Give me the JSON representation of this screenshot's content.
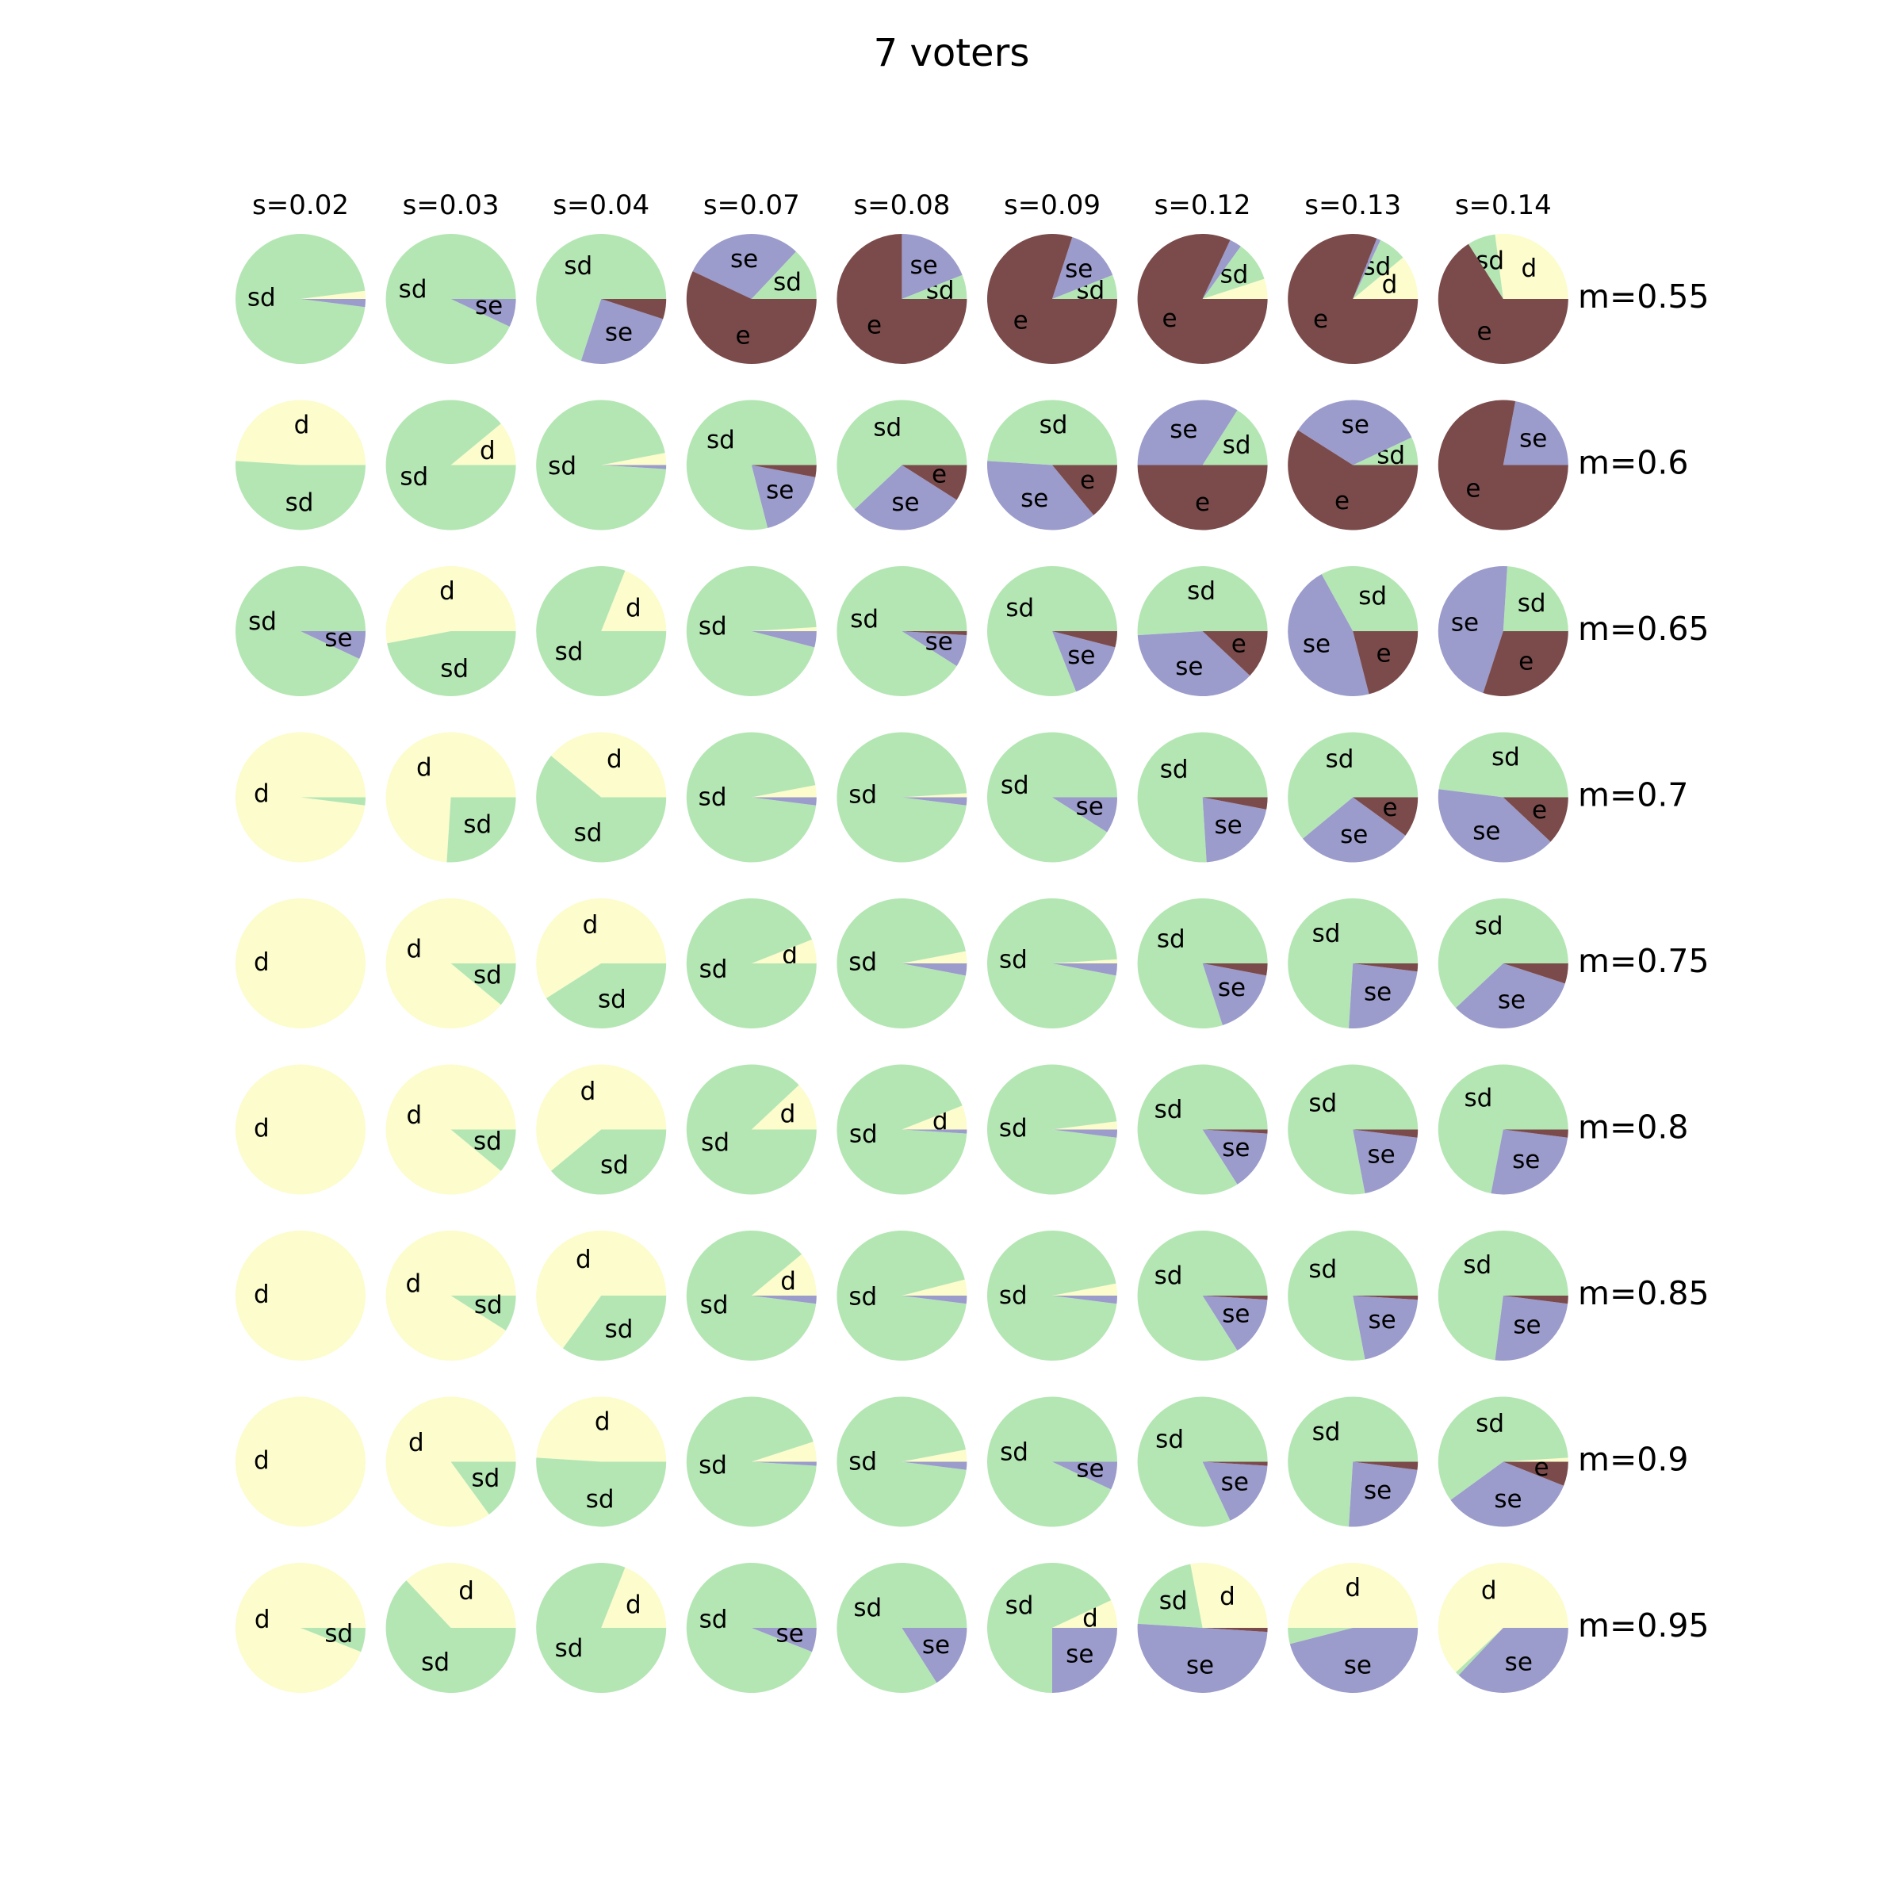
{
  "chart_data": {
    "type": "pie",
    "title": "7 voters",
    "layout": "grid",
    "columns": [
      "s=0.02",
      "s=0.03",
      "s=0.04",
      "s=0.07",
      "s=0.08",
      "s=0.09",
      "s=0.12",
      "s=0.13",
      "s=0.14"
    ],
    "rows": [
      "m=0.55",
      "m=0.6",
      "m=0.65",
      "m=0.7",
      "m=0.75",
      "m=0.8",
      "m=0.85",
      "m=0.9",
      "m=0.95"
    ],
    "slice_order": [
      "d",
      "sd",
      "se",
      "e"
    ],
    "colors": {
      "d": "#fcfccc",
      "sd": "#b4e6b4",
      "se": "#9b9bcc",
      "e": "#7b4b4b"
    },
    "label_min_fraction": 0.06,
    "start_angle_deg": 0,
    "direction": "counterclockwise",
    "values": [
      [
        [
          0.02,
          0.96,
          0.02,
          0
        ],
        [
          0,
          0.93,
          0.07,
          0
        ],
        [
          0,
          0.7,
          0.25,
          0.05
        ],
        [
          0,
          0.13,
          0.3,
          0.57
        ],
        [
          0,
          0.06,
          0.19,
          0.75
        ],
        [
          0,
          0.06,
          0.14,
          0.8
        ],
        [
          0.05,
          0.1,
          0.03,
          0.82
        ],
        [
          0.11,
          0.07,
          0.01,
          0.81
        ],
        [
          0.27,
          0.07,
          0,
          0.66
        ]
      ],
      [
        [
          0.49,
          0.51,
          0,
          0
        ],
        [
          0.11,
          0.89,
          0,
          0
        ],
        [
          0.03,
          0.96,
          0.01,
          0
        ],
        [
          0,
          0.79,
          0.18,
          0.03
        ],
        [
          0,
          0.62,
          0.29,
          0.09
        ],
        [
          0,
          0.49,
          0.37,
          0.14
        ],
        [
          0,
          0.16,
          0.34,
          0.5
        ],
        [
          0,
          0.07,
          0.34,
          0.59
        ],
        [
          0,
          0,
          0.22,
          0.78
        ]
      ],
      [
        [
          0,
          0.93,
          0.07,
          0
        ],
        [
          0.53,
          0.47,
          0,
          0
        ],
        [
          0.19,
          0.81,
          0,
          0
        ],
        [
          0.01,
          0.95,
          0.04,
          0
        ],
        [
          0,
          0.91,
          0.08,
          0.01
        ],
        [
          0,
          0.81,
          0.15,
          0.04
        ],
        [
          0,
          0.51,
          0.37,
          0.12
        ],
        [
          0,
          0.33,
          0.46,
          0.21
        ],
        [
          0,
          0.24,
          0.46,
          0.3
        ]
      ],
      [
        [
          0.98,
          0.02,
          0,
          0
        ],
        [
          0.74,
          0.26,
          0,
          0
        ],
        [
          0.39,
          0.61,
          0,
          0
        ],
        [
          0.03,
          0.95,
          0.02,
          0
        ],
        [
          0.01,
          0.97,
          0.02,
          0
        ],
        [
          0,
          0.91,
          0.09,
          0
        ],
        [
          0,
          0.76,
          0.21,
          0.03
        ],
        [
          0,
          0.61,
          0.29,
          0.1
        ],
        [
          0,
          0.48,
          0.4,
          0.12
        ]
      ],
      [
        [
          1,
          0,
          0,
          0
        ],
        [
          0.89,
          0.11,
          0,
          0
        ],
        [
          0.59,
          0.41,
          0,
          0
        ],
        [
          0.06,
          0.94,
          0,
          0
        ],
        [
          0.03,
          0.94,
          0.03,
          0
        ],
        [
          0.01,
          0.96,
          0.03,
          0
        ],
        [
          0,
          0.8,
          0.17,
          0.03
        ],
        [
          0,
          0.74,
          0.24,
          0.02
        ],
        [
          0,
          0.62,
          0.33,
          0.05
        ]
      ],
      [
        [
          1,
          0,
          0,
          0
        ],
        [
          0.89,
          0.11,
          0,
          0
        ],
        [
          0.61,
          0.39,
          0,
          0
        ],
        [
          0.12,
          0.88,
          0,
          0
        ],
        [
          0.06,
          0.93,
          0.01,
          0
        ],
        [
          0.02,
          0.96,
          0.02,
          0
        ],
        [
          0,
          0.84,
          0.15,
          0.01
        ],
        [
          0,
          0.78,
          0.2,
          0.02
        ],
        [
          0,
          0.72,
          0.26,
          0.02
        ]
      ],
      [
        [
          1,
          0,
          0,
          0
        ],
        [
          0.91,
          0.09,
          0,
          0
        ],
        [
          0.65,
          0.35,
          0,
          0
        ],
        [
          0.11,
          0.87,
          0.02,
          0
        ],
        [
          0.04,
          0.94,
          0.02,
          0
        ],
        [
          0.03,
          0.95,
          0.02,
          0
        ],
        [
          0,
          0.84,
          0.15,
          0.01
        ],
        [
          0,
          0.78,
          0.21,
          0.01
        ],
        [
          0,
          0.73,
          0.25,
          0.02
        ]
      ],
      [
        [
          1,
          0,
          0,
          0
        ],
        [
          0.85,
          0.15,
          0,
          0
        ],
        [
          0.49,
          0.51,
          0,
          0
        ],
        [
          0.05,
          0.94,
          0.01,
          0
        ],
        [
          0.03,
          0.95,
          0.02,
          0
        ],
        [
          0,
          0.93,
          0.07,
          0
        ],
        [
          0,
          0.82,
          0.17,
          0.01
        ],
        [
          0,
          0.74,
          0.24,
          0.02
        ],
        [
          0.01,
          0.59,
          0.34,
          0.06
        ]
      ],
      [
        [
          0.94,
          0.06,
          0,
          0
        ],
        [
          0.37,
          0.63,
          0,
          0
        ],
        [
          0.19,
          0.81,
          0,
          0
        ],
        [
          0,
          0.94,
          0.06,
          0
        ],
        [
          0,
          0.84,
          0.16,
          0
        ],
        [
          0.07,
          0.68,
          0.25,
          0
        ],
        [
          0.28,
          0.21,
          0.5,
          0.01
        ],
        [
          0.5,
          0.04,
          0.46,
          0
        ],
        [
          0.62,
          0.01,
          0.37,
          0
        ]
      ]
    ]
  }
}
